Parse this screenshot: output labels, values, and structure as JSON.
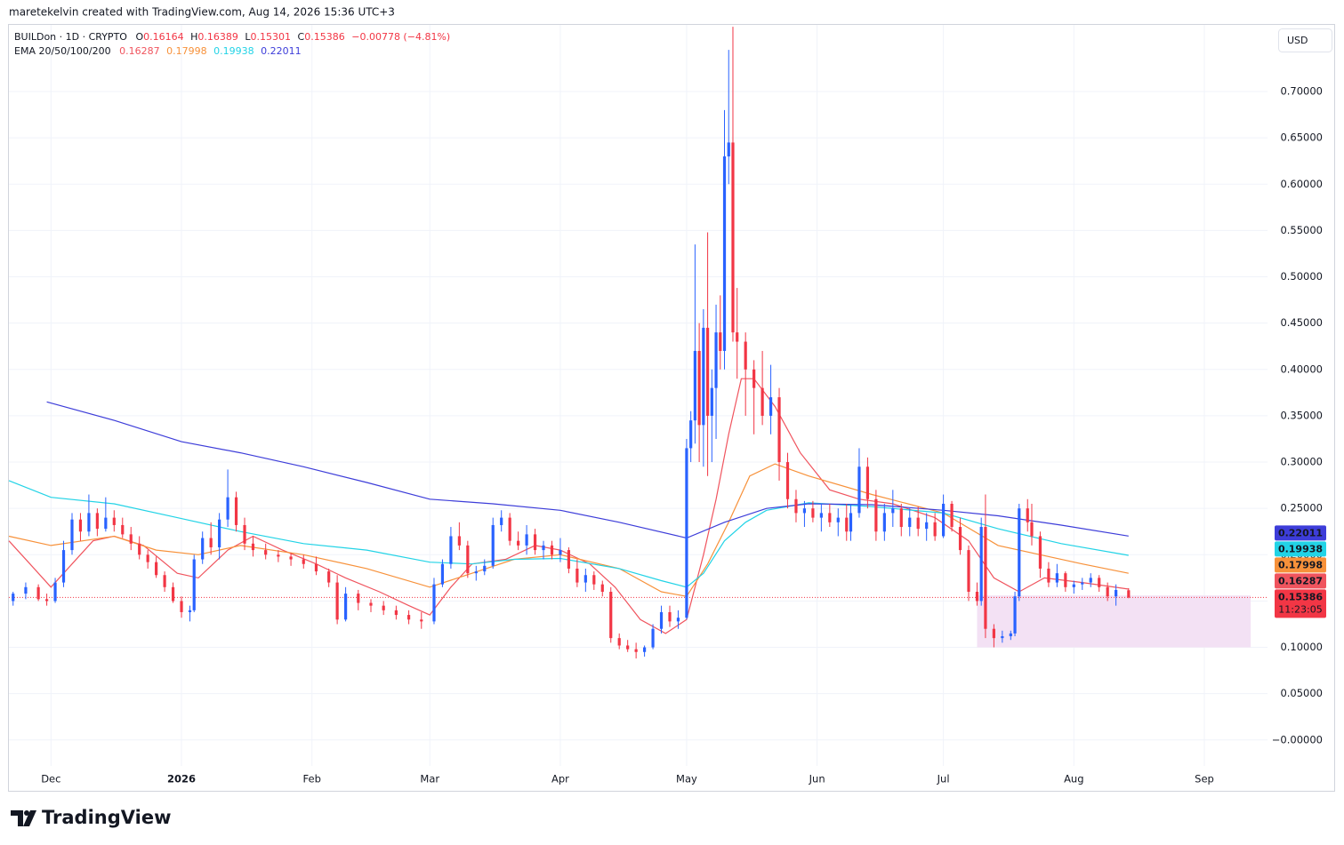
{
  "header": {
    "attribution": "maretekelvin created with TradingView.com, Aug 14, 2026 15:36 UTC+3",
    "brand": "TradingView"
  },
  "chart_data": {
    "type": "candlestick",
    "symbol": "BUILDon · 1D · CRYPTO",
    "ohlc_labels": [
      "O",
      "H",
      "L",
      "C"
    ],
    "change_label": "−0.00778 (−4.81%)",
    "indicator": "EMA 20/50/100/200",
    "currency": "USD",
    "countdown": "11:23:05",
    "up_color": "#2962ff",
    "down_color": "#f23645",
    "grid": true,
    "price_line": true,
    "xlim": [
      -10,
      289
    ],
    "ylim": [
      -0.028,
      0.772
    ],
    "xticks": [
      {
        "value": 0,
        "label": "Dec"
      },
      {
        "value": 31,
        "label": "2026"
      },
      {
        "value": 62,
        "label": "Feb"
      },
      {
        "value": 90,
        "label": "Mar"
      },
      {
        "value": 121,
        "label": "Apr"
      },
      {
        "value": 151,
        "label": "May"
      },
      {
        "value": 182,
        "label": "Jun"
      },
      {
        "value": 212,
        "label": "Jul"
      },
      {
        "value": 243,
        "label": "Aug"
      },
      {
        "value": 274,
        "label": "Sep"
      }
    ],
    "yticks": [
      {
        "value": 0,
        "label": "−0.00000"
      },
      {
        "value": 0.05,
        "label": "0.05000"
      },
      {
        "value": 0.1,
        "label": "0.10000"
      },
      {
        "value": 0.15,
        "label": "0.15000"
      },
      {
        "value": 0.2,
        "label": "0.20000"
      },
      {
        "value": 0.25,
        "label": "0.25000"
      },
      {
        "value": 0.3,
        "label": "0.30000"
      },
      {
        "value": 0.35,
        "label": "0.35000"
      },
      {
        "value": 0.4,
        "label": "0.40000"
      },
      {
        "value": 0.45,
        "label": "0.45000"
      },
      {
        "value": 0.5,
        "label": "0.50000"
      },
      {
        "value": 0.55,
        "label": "0.55000"
      },
      {
        "value": 0.6,
        "label": "0.60000"
      },
      {
        "value": 0.65,
        "label": "0.65000"
      },
      {
        "value": 0.7,
        "label": "0.70000"
      }
    ],
    "x": [
      -9,
      -6,
      -3,
      -1,
      1,
      3,
      5,
      7,
      9,
      11,
      13,
      15,
      17,
      19,
      21,
      23,
      25,
      27,
      29,
      31,
      33,
      34,
      36,
      38,
      40,
      42,
      44,
      46,
      48,
      51,
      54,
      57,
      60,
      63,
      66,
      68,
      70,
      73,
      76,
      79,
      82,
      85,
      88,
      91,
      93,
      95,
      97,
      99,
      101,
      103,
      105,
      107,
      109,
      111,
      113,
      115,
      117,
      119,
      121,
      123,
      125,
      127,
      129,
      131,
      133,
      135,
      137,
      139,
      141,
      143,
      145,
      147,
      149,
      151,
      152,
      153,
      154,
      155,
      156,
      157,
      158,
      159,
      160,
      161,
      162,
      163,
      165,
      167,
      169,
      171,
      173,
      175,
      177,
      179,
      181,
      183,
      185,
      187,
      189,
      190,
      192,
      194,
      196,
      198,
      200,
      202,
      204,
      206,
      208,
      210,
      212,
      214,
      216,
      218,
      220,
      221,
      222,
      224,
      226,
      228,
      229,
      230,
      232,
      233,
      235,
      237,
      239,
      241,
      243,
      245,
      247,
      249,
      251,
      253,
      256
    ],
    "open": [
      0.15,
      0.158,
      0.165,
      0.152,
      0.15,
      0.17,
      0.205,
      0.238,
      0.225,
      0.245,
      0.228,
      0.24,
      0.232,
      0.222,
      0.212,
      0.2,
      0.192,
      0.178,
      0.165,
      0.15,
      0.138,
      0.14,
      0.195,
      0.218,
      0.208,
      0.238,
      0.262,
      0.232,
      0.212,
      0.205,
      0.2,
      0.198,
      0.195,
      0.19,
      0.182,
      0.17,
      0.13,
      0.158,
      0.148,
      0.145,
      0.14,
      0.135,
      0.13,
      0.128,
      0.168,
      0.19,
      0.22,
      0.21,
      0.18,
      0.182,
      0.188,
      0.232,
      0.24,
      0.215,
      0.21,
      0.222,
      0.205,
      0.21,
      0.2,
      0.205,
      0.185,
      0.17,
      0.178,
      0.168,
      0.16,
      0.11,
      0.102,
      0.098,
      0.095,
      0.1,
      0.12,
      0.138,
      0.128,
      0.132,
      0.315,
      0.345,
      0.42,
      0.34,
      0.445,
      0.35,
      0.38,
      0.44,
      0.42,
      0.63,
      0.645,
      0.44,
      0.43,
      0.4,
      0.38,
      0.35,
      0.37,
      0.3,
      0.26,
      0.245,
      0.25,
      0.24,
      0.245,
      0.235,
      0.24,
      0.225,
      0.245,
      0.295,
      0.26,
      0.225,
      0.245,
      0.25,
      0.23,
      0.24,
      0.228,
      0.235,
      0.22,
      0.255,
      0.23,
      0.205,
      0.16,
      0.15,
      0.23,
      0.12,
      0.11,
      0.112,
      0.115,
      0.155,
      0.25,
      0.235,
      0.22,
      0.185,
      0.17,
      0.18,
      0.165,
      0.168,
      0.17,
      0.175,
      0.165,
      0.155,
      0.16164
    ],
    "high": [
      0.16,
      0.17,
      0.168,
      0.158,
      0.175,
      0.215,
      0.245,
      0.245,
      0.265,
      0.25,
      0.262,
      0.248,
      0.24,
      0.23,
      0.22,
      0.205,
      0.198,
      0.182,
      0.17,
      0.155,
      0.145,
      0.2,
      0.225,
      0.235,
      0.245,
      0.292,
      0.268,
      0.24,
      0.22,
      0.212,
      0.205,
      0.202,
      0.2,
      0.198,
      0.185,
      0.178,
      0.165,
      0.162,
      0.152,
      0.15,
      0.145,
      0.14,
      0.138,
      0.175,
      0.195,
      0.23,
      0.235,
      0.215,
      0.188,
      0.195,
      0.24,
      0.248,
      0.245,
      0.225,
      0.232,
      0.228,
      0.215,
      0.215,
      0.218,
      0.208,
      0.195,
      0.185,
      0.182,
      0.172,
      0.165,
      0.115,
      0.108,
      0.105,
      0.102,
      0.125,
      0.145,
      0.145,
      0.14,
      0.325,
      0.355,
      0.535,
      0.45,
      0.465,
      0.548,
      0.4,
      0.47,
      0.48,
      0.68,
      0.745,
      0.77,
      0.488,
      0.44,
      0.41,
      0.42,
      0.405,
      0.38,
      0.31,
      0.27,
      0.258,
      0.258,
      0.255,
      0.255,
      0.25,
      0.255,
      0.255,
      0.315,
      0.305,
      0.27,
      0.255,
      0.27,
      0.255,
      0.25,
      0.252,
      0.245,
      0.245,
      0.265,
      0.258,
      0.24,
      0.21,
      0.17,
      0.24,
      0.265,
      0.125,
      0.118,
      0.118,
      0.16,
      0.255,
      0.26,
      0.255,
      0.225,
      0.192,
      0.19,
      0.182,
      0.172,
      0.175,
      0.18,
      0.178,
      0.17,
      0.168,
      0.16389
    ],
    "low": [
      0.145,
      0.152,
      0.15,
      0.145,
      0.148,
      0.165,
      0.2,
      0.215,
      0.22,
      0.22,
      0.225,
      0.225,
      0.218,
      0.205,
      0.195,
      0.185,
      0.175,
      0.16,
      0.148,
      0.132,
      0.128,
      0.138,
      0.19,
      0.2,
      0.195,
      0.23,
      0.225,
      0.205,
      0.198,
      0.195,
      0.192,
      0.188,
      0.185,
      0.178,
      0.165,
      0.125,
      0.128,
      0.14,
      0.138,
      0.135,
      0.13,
      0.125,
      0.12,
      0.125,
      0.165,
      0.185,
      0.205,
      0.175,
      0.172,
      0.178,
      0.185,
      0.225,
      0.21,
      0.205,
      0.2,
      0.2,
      0.195,
      0.195,
      0.192,
      0.18,
      0.165,
      0.16,
      0.162,
      0.155,
      0.105,
      0.098,
      0.095,
      0.088,
      0.09,
      0.098,
      0.115,
      0.122,
      0.12,
      0.13,
      0.3,
      0.32,
      0.3,
      0.295,
      0.285,
      0.3,
      0.325,
      0.4,
      0.4,
      0.6,
      0.43,
      0.39,
      0.35,
      0.33,
      0.34,
      0.33,
      0.28,
      0.25,
      0.235,
      0.23,
      0.235,
      0.225,
      0.23,
      0.22,
      0.215,
      0.215,
      0.24,
      0.25,
      0.215,
      0.215,
      0.23,
      0.22,
      0.22,
      0.22,
      0.215,
      0.215,
      0.218,
      0.225,
      0.2,
      0.15,
      0.145,
      0.145,
      0.11,
      0.1,
      0.105,
      0.108,
      0.112,
      0.15,
      0.225,
      0.21,
      0.175,
      0.165,
      0.165,
      0.16,
      0.158,
      0.162,
      0.165,
      0.16,
      0.15,
      0.145,
      0.15301
    ],
    "close": [
      0.158,
      0.165,
      0.152,
      0.15,
      0.17,
      0.205,
      0.238,
      0.225,
      0.245,
      0.228,
      0.24,
      0.232,
      0.222,
      0.212,
      0.2,
      0.192,
      0.178,
      0.165,
      0.15,
      0.138,
      0.14,
      0.195,
      0.218,
      0.208,
      0.238,
      0.262,
      0.232,
      0.212,
      0.205,
      0.2,
      0.198,
      0.195,
      0.19,
      0.182,
      0.17,
      0.13,
      0.158,
      0.148,
      0.145,
      0.14,
      0.135,
      0.13,
      0.128,
      0.168,
      0.19,
      0.22,
      0.21,
      0.18,
      0.182,
      0.188,
      0.232,
      0.24,
      0.215,
      0.21,
      0.222,
      0.205,
      0.21,
      0.2,
      0.205,
      0.185,
      0.17,
      0.178,
      0.168,
      0.16,
      0.11,
      0.102,
      0.098,
      0.095,
      0.1,
      0.12,
      0.138,
      0.128,
      0.132,
      0.315,
      0.345,
      0.42,
      0.34,
      0.445,
      0.35,
      0.38,
      0.44,
      0.42,
      0.63,
      0.645,
      0.44,
      0.43,
      0.4,
      0.38,
      0.35,
      0.37,
      0.3,
      0.26,
      0.245,
      0.25,
      0.24,
      0.245,
      0.235,
      0.24,
      0.225,
      0.245,
      0.295,
      0.26,
      0.225,
      0.245,
      0.25,
      0.23,
      0.24,
      0.228,
      0.235,
      0.22,
      0.255,
      0.23,
      0.205,
      0.16,
      0.15,
      0.23,
      0.12,
      0.11,
      0.112,
      0.115,
      0.155,
      0.25,
      0.235,
      0.22,
      0.185,
      0.17,
      0.18,
      0.165,
      0.168,
      0.17,
      0.175,
      0.165,
      0.155,
      0.162,
      0.15386
    ],
    "series": [
      {
        "color": "#f0545e",
        "x": [
          -10,
          -5,
          0,
          5,
          10,
          15,
          22,
          30,
          35,
          42,
          48,
          55,
          63,
          70,
          78,
          85,
          90,
          95,
          100,
          108,
          115,
          121,
          128,
          134,
          140,
          146,
          151,
          155,
          158,
          161,
          164,
          167,
          172,
          178,
          185,
          192,
          200,
          210,
          218,
          224,
          230,
          236,
          245,
          256
        ],
        "values": [
          0.215,
          0.19,
          0.165,
          0.19,
          0.215,
          0.22,
          0.21,
          0.18,
          0.175,
          0.205,
          0.22,
          0.205,
          0.19,
          0.175,
          0.16,
          0.145,
          0.135,
          0.165,
          0.19,
          0.195,
          0.21,
          0.205,
          0.19,
          0.165,
          0.13,
          0.115,
          0.13,
          0.2,
          0.26,
          0.33,
          0.39,
          0.39,
          0.36,
          0.31,
          0.27,
          0.26,
          0.255,
          0.24,
          0.215,
          0.175,
          0.16,
          0.175,
          0.17,
          0.16287
        ]
      },
      {
        "color": "#f7913a",
        "x": [
          -10,
          0,
          15,
          25,
          35,
          45,
          60,
          75,
          90,
          100,
          110,
          121,
          135,
          145,
          151,
          156,
          161,
          166,
          172,
          180,
          195,
          212,
          225,
          235,
          245,
          256
        ],
        "values": [
          0.22,
          0.21,
          0.22,
          0.205,
          0.2,
          0.21,
          0.2,
          0.185,
          0.165,
          0.18,
          0.195,
          0.2,
          0.185,
          0.16,
          0.155,
          0.19,
          0.235,
          0.285,
          0.298,
          0.285,
          0.265,
          0.245,
          0.21,
          0.2,
          0.19,
          0.17998
        ]
      },
      {
        "color": "#22d3e6",
        "x": [
          -10,
          0,
          15,
          30,
          45,
          60,
          75,
          90,
          100,
          110,
          121,
          135,
          145,
          151,
          155,
          160,
          165,
          170,
          180,
          195,
          212,
          225,
          240,
          256
        ],
        "values": [
          0.28,
          0.262,
          0.255,
          0.24,
          0.225,
          0.212,
          0.205,
          0.192,
          0.19,
          0.195,
          0.196,
          0.185,
          0.172,
          0.165,
          0.18,
          0.215,
          0.235,
          0.248,
          0.256,
          0.252,
          0.245,
          0.228,
          0.212,
          0.19938
        ]
      },
      {
        "color": "#3d3dd9",
        "x": [
          -1,
          15,
          31,
          45,
          60,
          75,
          90,
          105,
          121,
          135,
          151,
          160,
          170,
          180,
          195,
          212,
          225,
          240,
          256
        ],
        "values": [
          0.365,
          0.345,
          0.322,
          0.31,
          0.295,
          0.278,
          0.26,
          0.255,
          0.248,
          0.235,
          0.218,
          0.235,
          0.25,
          0.255,
          0.254,
          0.248,
          0.242,
          0.232,
          0.22011
        ]
      }
    ],
    "zone": {
      "x": [
        220,
        285
      ],
      "y": [
        0.1,
        0.156
      ],
      "color": "#f3e1f4"
    }
  }
}
